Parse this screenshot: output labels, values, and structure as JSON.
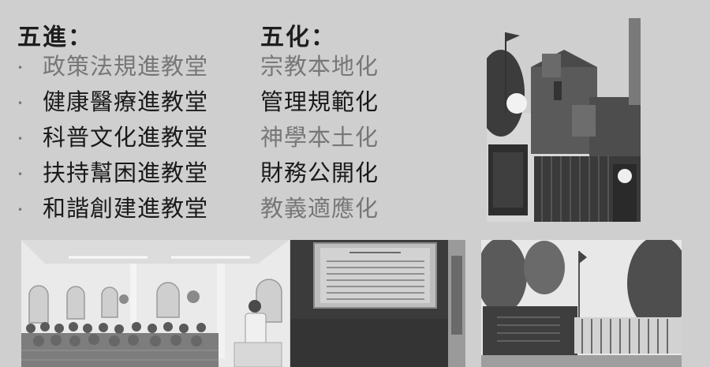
{
  "headings": {
    "left": "五進：",
    "right": "五化："
  },
  "left_items": [
    {
      "text": "政策法規進教堂",
      "tone": "grey"
    },
    {
      "text": "健康醫療進教堂",
      "tone": "dark"
    },
    {
      "text": "科普文化進教堂",
      "tone": "dark"
    },
    {
      "text": "扶持幫困進教堂",
      "tone": "dark"
    },
    {
      "text": "和諧創建進教堂",
      "tone": "dark"
    }
  ],
  "right_items": [
    {
      "text": "宗教本地化",
      "tone": "grey"
    },
    {
      "text": "管理規範化",
      "tone": "dark"
    },
    {
      "text": "神學本土化",
      "tone": "grey"
    },
    {
      "text": "財務公開化",
      "tone": "dark"
    },
    {
      "text": "教義適應化",
      "tone": "grey"
    }
  ],
  "bullet_glyph": "•",
  "photos": [
    "church-photo",
    "classroom-photo",
    "signboard-photo",
    "gate-photo"
  ]
}
